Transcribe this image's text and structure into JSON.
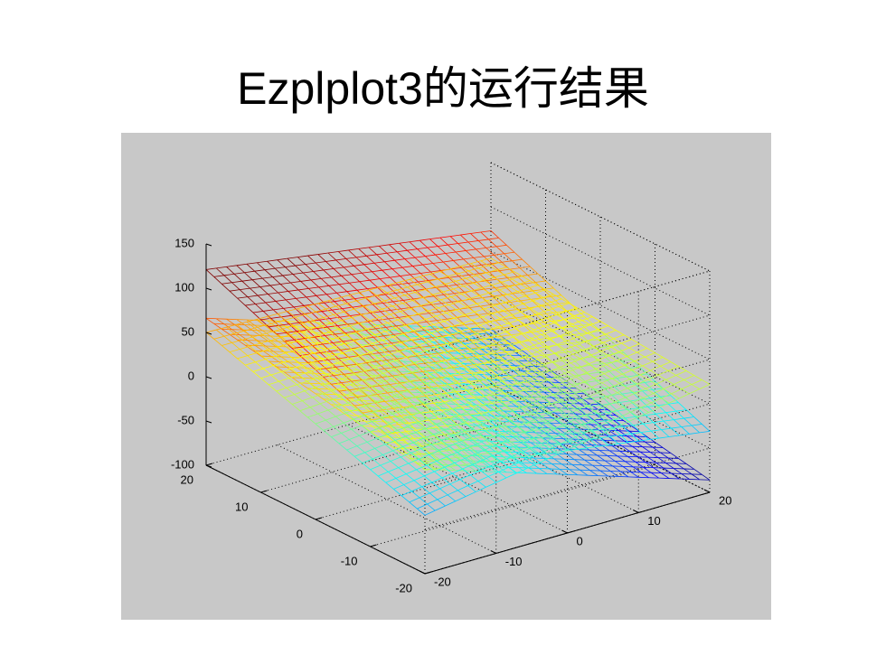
{
  "title": "Ezplplot3的运行结果",
  "figure": {
    "zticks": [
      150,
      100,
      50,
      0,
      -50,
      -100
    ],
    "xticks": [
      20,
      10,
      0,
      -10,
      -20
    ],
    "yticks": [
      -20,
      -10,
      0,
      10,
      20
    ]
  }
}
